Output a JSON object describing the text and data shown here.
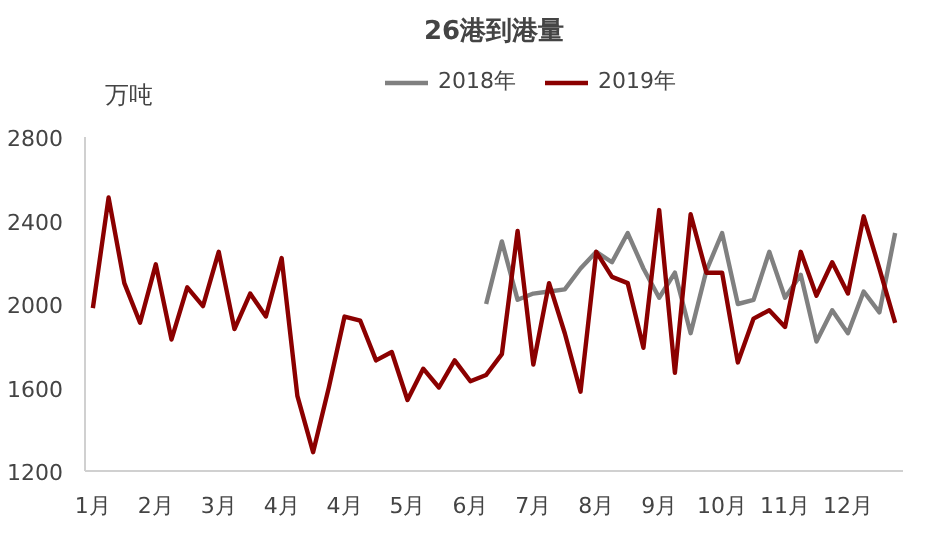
{
  "chart_data": {
    "type": "line",
    "title": "26港到港量",
    "ylabel": "万吨",
    "categories": [
      "1月",
      null,
      null,
      null,
      "2月",
      null,
      null,
      null,
      "3月",
      null,
      null,
      null,
      "4月",
      null,
      null,
      null,
      "4月",
      null,
      null,
      null,
      "5月",
      null,
      null,
      null,
      "6月",
      null,
      null,
      null,
      "7月",
      null,
      null,
      null,
      "8月",
      null,
      null,
      null,
      "9月",
      null,
      null,
      null,
      "10月",
      null,
      null,
      null,
      "11月",
      null,
      null,
      null,
      "12月",
      null,
      null,
      null
    ],
    "series": [
      {
        "name": "2018年",
        "color": "#808080",
        "values": [
          null,
          null,
          null,
          null,
          null,
          null,
          null,
          null,
          null,
          null,
          null,
          null,
          null,
          null,
          null,
          null,
          null,
          null,
          null,
          null,
          null,
          null,
          null,
          null,
          null,
          2000,
          2300,
          2020,
          2050,
          2060,
          2070,
          2170,
          2250,
          2200,
          2340,
          2170,
          2030,
          2150,
          1860,
          2160,
          2340,
          2000,
          2020,
          2250,
          2030,
          2140,
          1820,
          1970,
          1860,
          2060,
          1960,
          2340
        ]
      },
      {
        "name": "2019年",
        "color": "#8b0000",
        "values": [
          1980,
          2510,
          2100,
          1910,
          2190,
          1830,
          2080,
          1990,
          2250,
          1880,
          2050,
          1940,
          2220,
          1560,
          1290,
          1600,
          1940,
          1920,
          1730,
          1770,
          1540,
          1690,
          1600,
          1730,
          1630,
          1660,
          1760,
          2350,
          1710,
          2100,
          1860,
          1580,
          2250,
          2130,
          2100,
          1790,
          2450,
          1670,
          2430,
          2150,
          2150,
          1720,
          1930,
          1970,
          1890,
          2250,
          2040,
          2200,
          2050,
          2420,
          2170,
          1910
        ]
      }
    ],
    "ylim": [
      1200,
      2800
    ],
    "yticks": [
      1200,
      1600,
      2000,
      2400,
      2800
    ],
    "grid": false,
    "legend": "top",
    "marker": "none",
    "line_style": "solid"
  }
}
